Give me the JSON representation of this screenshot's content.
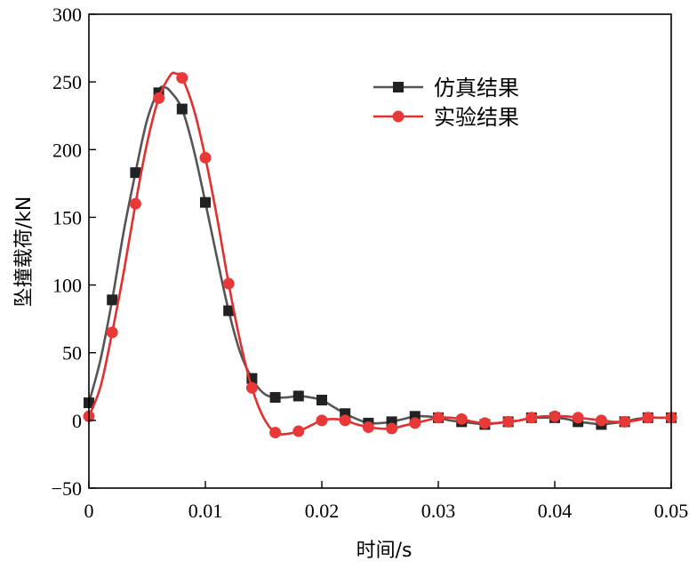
{
  "chart_data": {
    "type": "line",
    "xlabel": "时间/s",
    "ylabel": "坠撞载荷/kN",
    "xlim": [
      0,
      0.05
    ],
    "ylim": [
      -50,
      300
    ],
    "x_ticks": [
      0,
      0.01,
      0.02,
      0.03,
      0.04,
      0.05
    ],
    "x_tick_labels": [
      "0",
      "0.01",
      "0.02",
      "0.03",
      "0.04",
      "0.05"
    ],
    "y_ticks": [
      -50,
      0,
      50,
      100,
      150,
      200,
      250,
      300
    ],
    "y_tick_labels": [
      "−50",
      "0",
      "50",
      "100",
      "150",
      "200",
      "250",
      "300"
    ],
    "grid": false,
    "legend_position": "top-right",
    "series": [
      {
        "name": "仿真结果",
        "color": "#555555",
        "marker_color": "#222222",
        "marker": "square",
        "x": [
          0,
          0.002,
          0.004,
          0.006,
          0.008,
          0.01,
          0.012,
          0.014,
          0.016,
          0.018,
          0.02,
          0.022,
          0.024,
          0.026,
          0.028,
          0.03,
          0.032,
          0.034,
          0.036,
          0.038,
          0.04,
          0.042,
          0.044,
          0.046,
          0.048,
          0.05
        ],
        "y": [
          13,
          89,
          183,
          242,
          230,
          161,
          81,
          31,
          17,
          18,
          15,
          5,
          -2,
          -1,
          3,
          2,
          -1,
          -3,
          -1,
          2,
          2,
          -1,
          -3,
          -1,
          2,
          2
        ],
        "curve_x": [
          0,
          0.001,
          0.002,
          0.003,
          0.004,
          0.005,
          0.006,
          0.0065,
          0.007,
          0.008,
          0.009,
          0.01,
          0.011,
          0.012,
          0.013,
          0.014,
          0.015,
          0.016,
          0.017,
          0.018,
          0.019,
          0.02,
          0.021,
          0.022,
          0.023,
          0.024,
          0.025,
          0.026,
          0.027,
          0.028,
          0.029,
          0.03,
          0.031,
          0.032,
          0.033,
          0.034,
          0.035,
          0.036,
          0.037,
          0.038,
          0.039,
          0.04,
          0.041,
          0.042,
          0.043,
          0.044,
          0.045,
          0.046,
          0.047,
          0.048,
          0.049,
          0.05
        ],
        "curve_y": [
          13,
          45,
          89,
          140,
          183,
          222,
          244,
          246,
          243,
          230,
          200,
          161,
          120,
          81,
          50,
          31,
          20,
          17,
          17,
          18,
          17,
          15,
          10,
          5,
          1,
          -2,
          -2,
          -1,
          1,
          3,
          3,
          2,
          0,
          -1,
          -2,
          -3,
          -2,
          -1,
          0,
          2,
          2,
          2,
          1,
          -1,
          -2,
          -3,
          -2,
          -1,
          1,
          2,
          2,
          2
        ]
      },
      {
        "name": "实验结果",
        "color": "#e03030",
        "marker_color": "#e83838",
        "marker": "circle",
        "x": [
          0,
          0.002,
          0.004,
          0.006,
          0.008,
          0.01,
          0.012,
          0.014,
          0.016,
          0.018,
          0.02,
          0.022,
          0.024,
          0.026,
          0.028,
          0.03,
          0.032,
          0.034,
          0.036,
          0.038,
          0.04,
          0.042,
          0.044,
          0.046,
          0.048,
          0.05
        ],
        "y": [
          3,
          65,
          160,
          238,
          253,
          194,
          101,
          24,
          -9,
          -8,
          0,
          0,
          -5,
          -6,
          -2,
          2,
          1,
          -2,
          -1,
          2,
          3,
          2,
          0,
          -1,
          2,
          2
        ],
        "curve_x": [
          0,
          0.001,
          0.002,
          0.003,
          0.004,
          0.005,
          0.006,
          0.007,
          0.0075,
          0.008,
          0.009,
          0.01,
          0.011,
          0.012,
          0.013,
          0.014,
          0.015,
          0.016,
          0.017,
          0.018,
          0.019,
          0.02,
          0.021,
          0.022,
          0.023,
          0.024,
          0.025,
          0.026,
          0.027,
          0.028,
          0.029,
          0.03,
          0.031,
          0.032,
          0.033,
          0.034,
          0.035,
          0.036,
          0.037,
          0.038,
          0.039,
          0.04,
          0.041,
          0.042,
          0.043,
          0.044,
          0.045,
          0.046,
          0.047,
          0.048,
          0.049,
          0.05
        ],
        "curve_y": [
          3,
          25,
          65,
          110,
          160,
          205,
          238,
          255,
          256,
          253,
          230,
          194,
          150,
          101,
          58,
          24,
          2,
          -9,
          -10,
          -8,
          -4,
          0,
          1,
          0,
          -3,
          -5,
          -6,
          -6,
          -4,
          -2,
          0,
          2,
          2,
          1,
          -1,
          -2,
          -2,
          -1,
          0,
          2,
          3,
          3,
          3,
          2,
          1,
          0,
          -1,
          -1,
          0,
          2,
          2,
          2
        ]
      }
    ]
  }
}
